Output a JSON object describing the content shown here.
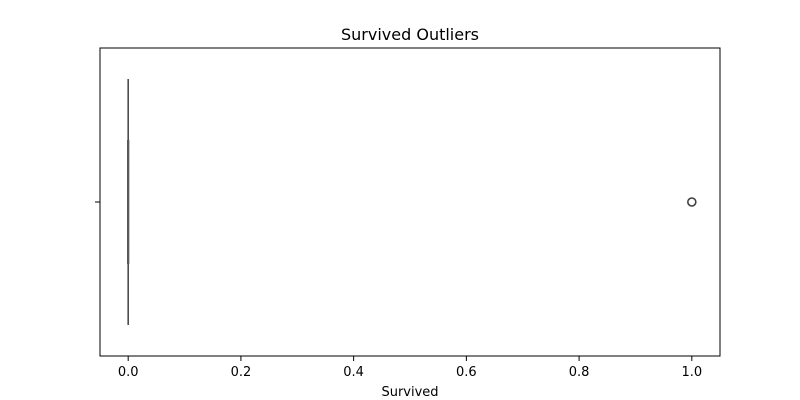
{
  "chart_data": {
    "type": "box",
    "title": "Survived Outliers",
    "xlabel": "Survived",
    "ylabel": "",
    "orientation": "horizontal",
    "xlim": [
      -0.05,
      1.05
    ],
    "xticks": [
      0.0,
      0.2,
      0.4,
      0.6,
      0.8,
      1.0
    ],
    "xtick_labels": [
      "0.0",
      "0.2",
      "0.4",
      "0.6",
      "0.8",
      "1.0"
    ],
    "grid": false,
    "box": {
      "min": 0.0,
      "q1": 0.0,
      "median": 0.0,
      "q3": 0.0,
      "max": 0.0,
      "outliers": [
        1.0
      ]
    },
    "colors": {
      "box_line": "#3f3f3f",
      "axes": "#000000",
      "outlier": "#3f3f3f"
    }
  }
}
